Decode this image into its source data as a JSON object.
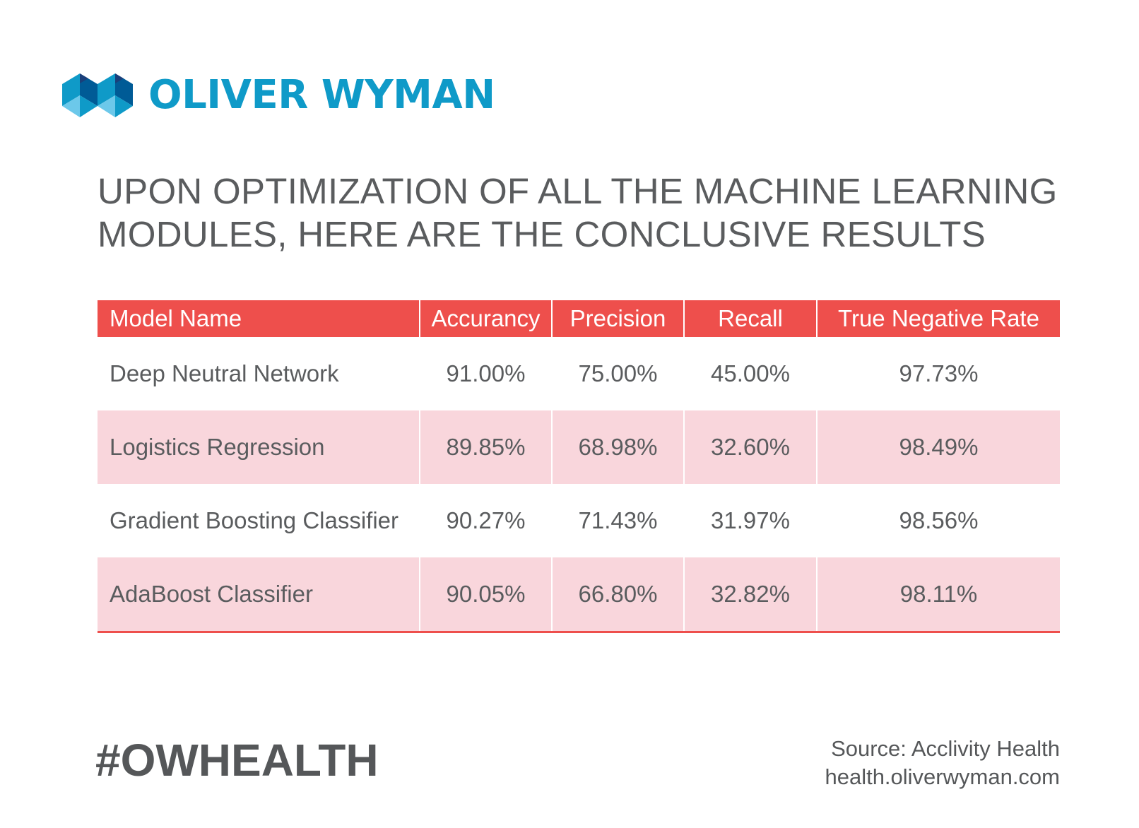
{
  "logo": {
    "text": "OLIVER WYMAN",
    "icon": "oliver-wyman-logo-mark",
    "color": "#0f9ac8"
  },
  "headline": {
    "line1": "UPON OPTIMIZATION OF ALL THE MACHINE LEARNING",
    "line2": "MODULES, HERE ARE THE CONCLUSIVE RESULTS"
  },
  "chart_data": {
    "type": "table",
    "columns": [
      "Model Name",
      "Accurancy",
      "Precision",
      "Recall",
      "True Negative Rate"
    ],
    "rows": [
      [
        "Deep Neutral Network",
        "91.00%",
        "75.00%",
        "45.00%",
        "97.73%"
      ],
      [
        "Logistics Regression",
        "89.85%",
        "68.98%",
        "32.60%",
        "98.49%"
      ],
      [
        "Gradient Boosting Classifier",
        "90.27%",
        "71.43%",
        "31.97%",
        "98.56%"
      ],
      [
        "AdaBoost Classifier",
        "90.05%",
        "66.80%",
        "32.82%",
        "98.11%"
      ]
    ],
    "header_color": "#ee4f4c",
    "stripe_color": "#f9d6dc"
  },
  "footer": {
    "hashtag": "#OWHEALTH",
    "source_line": "Source: Acclivity Health",
    "url": "health.oliverwyman.com"
  }
}
